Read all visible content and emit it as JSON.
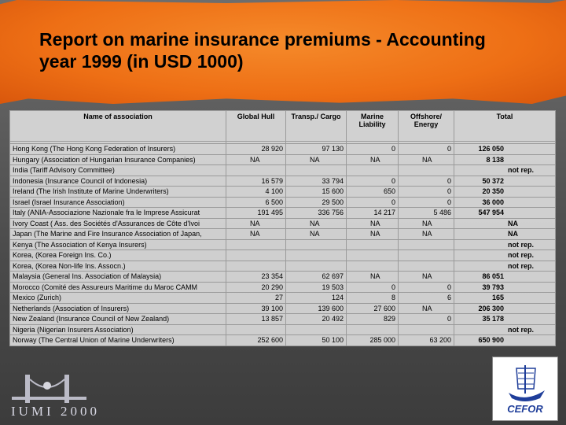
{
  "header": {
    "title": "Report on marine insurance premiums - Accounting year 1999 (in USD 1000)"
  },
  "table": {
    "columns": [
      "Name of association",
      "Global Hull",
      "Transp./ Cargo",
      "Marine Liability",
      "Offshore/ Energy",
      "Total"
    ],
    "rows": [
      [
        "Hong Kong (The Hong Kong Federation of Insurers)",
        "28 920",
        "97 130",
        "0",
        "0",
        "126 050"
      ],
      [
        "Hungary (Association of Hungarian Insurance Companies)",
        "NA",
        "NA",
        "NA",
        "NA",
        "8 138"
      ],
      [
        "India (Tariff Advisory Committee)",
        null,
        null,
        null,
        null,
        "not rep."
      ],
      [
        "Indonesia (Insurance Council of Indonesia)",
        "16 579",
        "33 794",
        "0",
        "0",
        "50 372"
      ],
      [
        "Ireland (The Irish Institute of Marine Underwriters)",
        "4 100",
        "15 600",
        "650",
        "0",
        "20 350"
      ],
      [
        "Israel (Israel Insurance Association)",
        "6 500",
        "29 500",
        "0",
        "0",
        "36 000"
      ],
      [
        "Italy (ANIA-Associazione Nazionale fra le Imprese Assicurat",
        "191 495",
        "336 756",
        "14 217",
        "5 486",
        "547 954"
      ],
      [
        "Ivory Coast ( Ass. des Sociétés d'Assurances de Côte d'Ivoi",
        "NA",
        "NA",
        "NA",
        "NA",
        "NA"
      ],
      [
        "Japan (The Marine and Fire Insurance Association of Japan,",
        "NA",
        "NA",
        "NA",
        "NA",
        "NA"
      ],
      [
        "Kenya (The Association of Kenya Insurers)",
        null,
        null,
        null,
        null,
        "not rep."
      ],
      [
        "Korea,  (Korea Foreign Ins. Co.)",
        null,
        null,
        null,
        null,
        "not rep."
      ],
      [
        "Korea,  (Korea Non-life Ins. Assocn.)",
        null,
        null,
        null,
        null,
        "not rep."
      ],
      [
        "Malaysia (General Ins. Association of Malaysia)",
        "23 354",
        "62 697",
        "NA",
        "NA",
        "86 051"
      ],
      [
        "Morocco (Comité des Assureurs Maritime du Maroc CAMM",
        "20 290",
        "19 503",
        "0",
        "0",
        "39 793"
      ],
      [
        "Mexico (Zurich)",
        "27",
        "124",
        "8",
        "6",
        "165"
      ],
      [
        "Netherlands (Association of Insurers)",
        "39 100",
        "139 600",
        "27 600",
        "NA",
        "206 300"
      ],
      [
        "New Zealand (Insurance Council of New Zealand)",
        "13 857",
        "20 492",
        "829",
        "0",
        "35 178"
      ],
      [
        "Nigeria (Nigerian Insurers Association)",
        null,
        null,
        null,
        null,
        "not rep."
      ],
      [
        "Norway (The Central Union of Marine Underwriters)",
        "252 600",
        "50 100",
        "285 000",
        "63 200",
        "650 900"
      ]
    ]
  },
  "footer": {
    "left_logo": "IUMI 2000",
    "right_logo": "CEFOR"
  }
}
